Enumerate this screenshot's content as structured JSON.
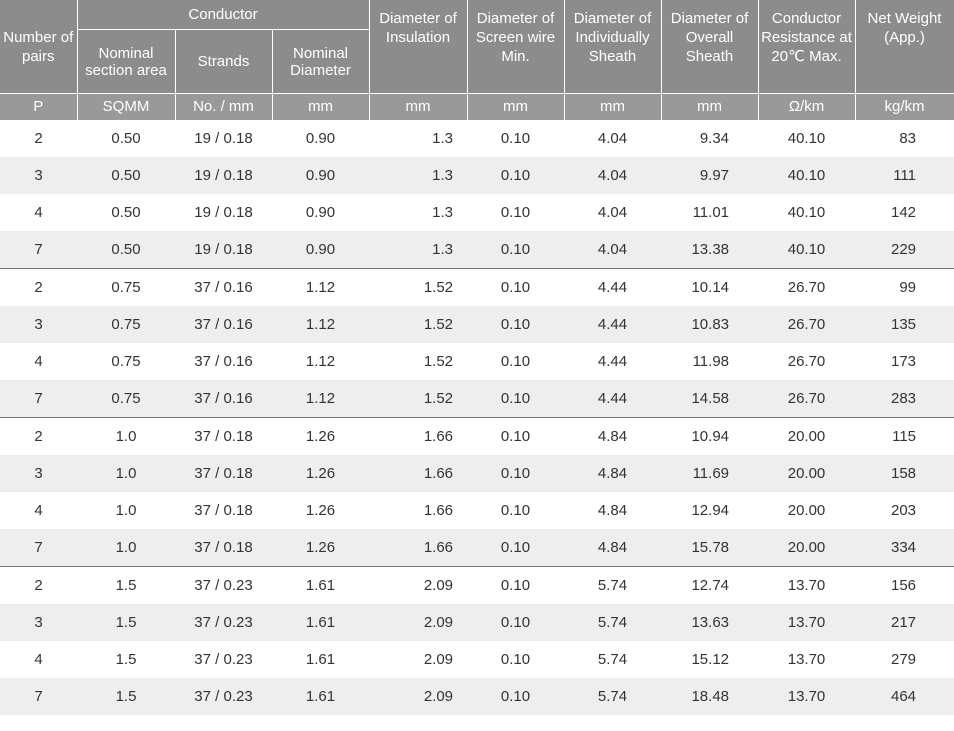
{
  "header": {
    "number_of_pairs": "Number of pairs",
    "conductor": "Conductor",
    "nominal_section_area": "Nominal section area",
    "strands": "Strands",
    "nominal_diameter": "Nominal Diameter",
    "diameter_insulation": "Diameter of Insulation",
    "diameter_screen": "Diameter of Screen wire Min.",
    "diameter_individual_sheath": "Diameter of Individually Sheath",
    "diameter_overall_sheath": "Diameter of Overall Sheath",
    "conductor_resistance": "Conductor Resistance at 20℃ Max.",
    "net_weight": "Net Weight (App.)"
  },
  "units": [
    "P",
    "SQMM",
    "No. / mm",
    "mm",
    "mm",
    "mm",
    "mm",
    "mm",
    "Ω/km",
    "kg/km"
  ],
  "rows": [
    [
      "2",
      "0.50",
      "19 / 0.18",
      "0.90",
      "1.3",
      "0.10",
      "4.04",
      "9.34",
      "40.10",
      "83"
    ],
    [
      "3",
      "0.50",
      "19 / 0.18",
      "0.90",
      "1.3",
      "0.10",
      "4.04",
      "9.97",
      "40.10",
      "111"
    ],
    [
      "4",
      "0.50",
      "19 / 0.18",
      "0.90",
      "1.3",
      "0.10",
      "4.04",
      "11.01",
      "40.10",
      "142"
    ],
    [
      "7",
      "0.50",
      "19 / 0.18",
      "0.90",
      "1.3",
      "0.10",
      "4.04",
      "13.38",
      "40.10",
      "229"
    ],
    [
      "2",
      "0.75",
      "37 / 0.16",
      "1.12",
      "1.52",
      "0.10",
      "4.44",
      "10.14",
      "26.70",
      "99"
    ],
    [
      "3",
      "0.75",
      "37 / 0.16",
      "1.12",
      "1.52",
      "0.10",
      "4.44",
      "10.83",
      "26.70",
      "135"
    ],
    [
      "4",
      "0.75",
      "37 / 0.16",
      "1.12",
      "1.52",
      "0.10",
      "4.44",
      "11.98",
      "26.70",
      "173"
    ],
    [
      "7",
      "0.75",
      "37 / 0.16",
      "1.12",
      "1.52",
      "0.10",
      "4.44",
      "14.58",
      "26.70",
      "283"
    ],
    [
      "2",
      "1.0",
      "37 / 0.18",
      "1.26",
      "1.66",
      "0.10",
      "4.84",
      "10.94",
      "20.00",
      "115"
    ],
    [
      "3",
      "1.0",
      "37 / 0.18",
      "1.26",
      "1.66",
      "0.10",
      "4.84",
      "11.69",
      "20.00",
      "158"
    ],
    [
      "4",
      "1.0",
      "37 / 0.18",
      "1.26",
      "1.66",
      "0.10",
      "4.84",
      "12.94",
      "20.00",
      "203"
    ],
    [
      "7",
      "1.0",
      "37 / 0.18",
      "1.26",
      "1.66",
      "0.10",
      "4.84",
      "15.78",
      "20.00",
      "334"
    ],
    [
      "2",
      "1.5",
      "37 / 0.23",
      "1.61",
      "2.09",
      "0.10",
      "5.74",
      "12.74",
      "13.70",
      "156"
    ],
    [
      "3",
      "1.5",
      "37 / 0.23",
      "1.61",
      "2.09",
      "0.10",
      "5.74",
      "13.63",
      "13.70",
      "217"
    ],
    [
      "4",
      "1.5",
      "37 / 0.23",
      "1.61",
      "2.09",
      "0.10",
      "5.74",
      "15.12",
      "13.70",
      "279"
    ],
    [
      "7",
      "1.5",
      "37 / 0.23",
      "1.61",
      "2.09",
      "0.10",
      "5.74",
      "18.48",
      "13.70",
      "464"
    ]
  ],
  "colors": {
    "header_bg": "#8c8c8c",
    "units_bg": "#999999",
    "stripe_bg": "#eeeeee",
    "text": "#333333"
  }
}
